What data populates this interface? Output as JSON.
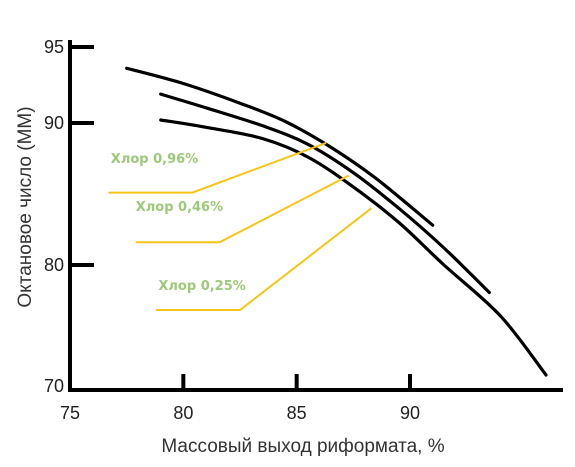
{
  "chart_data": {
    "type": "line",
    "title": "",
    "xlabel": "Массовый выход риформата, %",
    "ylabel": "Октановое число (ММ)",
    "xlim": [
      75,
      97
    ],
    "x_ticks": [
      75,
      80,
      85,
      90
    ],
    "y_ticks": [
      70,
      80,
      90,
      95
    ],
    "y_axis_mapping": [
      [
        70,
        390
      ],
      [
        80,
        265
      ],
      [
        90,
        123
      ],
      [
        95,
        47
      ]
    ],
    "grid": false,
    "legend": "none",
    "colors": {
      "curve": "#000000",
      "annotation_line": "#f5c518",
      "annotation_text": "#9dc97a",
      "axis": "#000000"
    },
    "series": [
      {
        "x": [
          77.5,
          80,
          82.5,
          84.5,
          86.5,
          88.5,
          91
        ],
        "y": [
          93.6,
          92.6,
          91.3,
          90.1,
          88.3,
          86.1,
          82.8
        ]
      },
      {
        "x": [
          79,
          81,
          83.5,
          85.5,
          87.5,
          89.5,
          91.5,
          93.5
        ],
        "y": [
          91.9,
          91.0,
          89.8,
          88.5,
          86.5,
          84.0,
          81.2,
          77.8
        ]
      },
      {
        "x": [
          79,
          81,
          83.5,
          85.5,
          87.5,
          89.5,
          91.5,
          94,
          96
        ],
        "y": [
          90.2,
          89.7,
          88.9,
          87.6,
          85.5,
          83.0,
          80.0,
          75.9,
          71.2
        ]
      }
    ],
    "annotations": [
      {
        "text": "Хлор 0,96%",
        "series_index": 0,
        "label_x": 76.8,
        "label_y": 87.2,
        "line_x": [
          76.7,
          80.4
        ],
        "line_y": 85.1,
        "target": [
          86.3,
          88.6
        ]
      },
      {
        "text": "Хлор 0,46%",
        "series_index": 1,
        "label_x": 77.9,
        "label_y": 83.8,
        "line_x": [
          77.9,
          81.6
        ],
        "line_y": 81.6,
        "target": [
          87.3,
          86.3
        ]
      },
      {
        "text": "Хлор 0,25%",
        "series_index": 2,
        "label_x": 78.9,
        "label_y": 78.0,
        "line_x": [
          78.8,
          82.5
        ],
        "line_y": 76.4,
        "target": [
          88.3,
          84.0
        ]
      }
    ]
  }
}
